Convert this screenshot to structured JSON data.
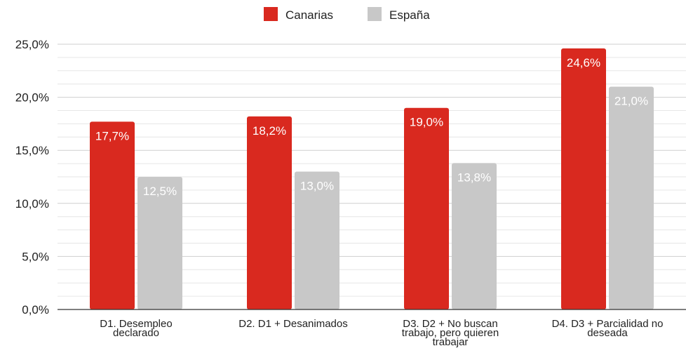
{
  "chart_data": {
    "type": "bar",
    "categories": [
      [
        "D1. Desempleo",
        "declarado"
      ],
      [
        "D2. D1 + Desanimados"
      ],
      [
        "D3. D2 + No buscan",
        "trabajo, pero quieren",
        "trabajar"
      ],
      [
        "D4. D3 + Parcialidad no",
        "deseada"
      ]
    ],
    "series": [
      {
        "name": "Canarias",
        "color": "#d9291f",
        "values": [
          17.7,
          18.2,
          19.0,
          24.6
        ],
        "labels": [
          "17,7%",
          "18,2%",
          "19,0%",
          "24,6%"
        ]
      },
      {
        "name": "España",
        "color": "#c8c8c8",
        "values": [
          12.5,
          13.0,
          13.8,
          21.0
        ],
        "labels": [
          "12,5%",
          "13,0%",
          "13,8%",
          "21,0%"
        ]
      }
    ],
    "ylim": [
      0,
      25
    ],
    "yticks": [
      0,
      5,
      10,
      15,
      20,
      25
    ],
    "ytick_labels": [
      "0,0%",
      "5,0%",
      "10,0%",
      "15,0%",
      "20,0%",
      "25,0%"
    ],
    "legend_position": "top-center",
    "grid": true
  }
}
